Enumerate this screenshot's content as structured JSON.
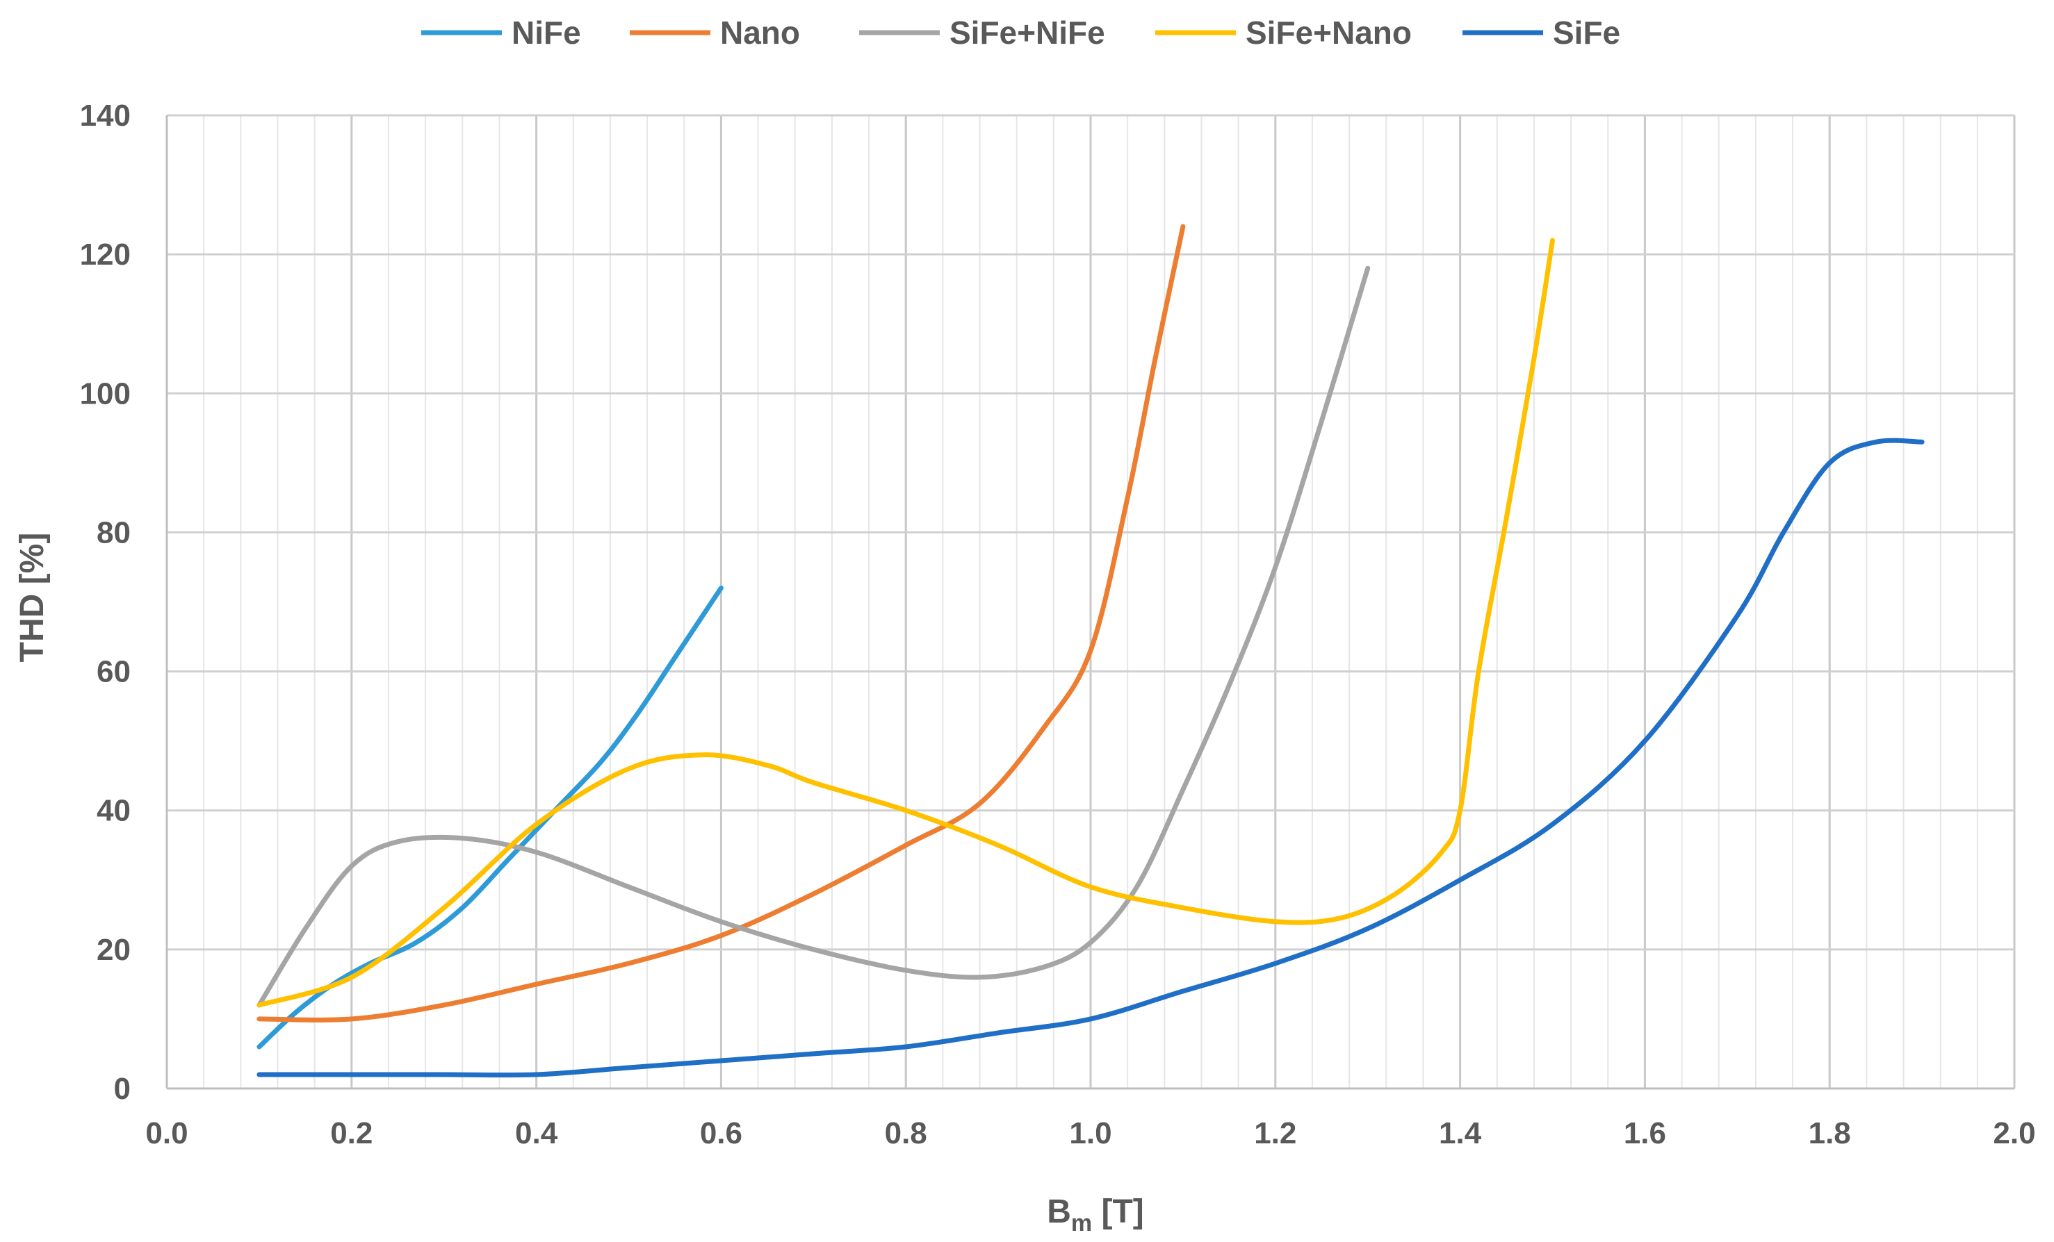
{
  "chart_data": {
    "type": "line",
    "xlabel": {
      "main": "B",
      "sub": "m",
      "unit": " [T]"
    },
    "ylabel": "THD [%]",
    "xlim": [
      0.0,
      2.0
    ],
    "ylim": [
      0,
      140
    ],
    "x_major_step": 0.2,
    "x_minor_step": 0.04,
    "y_major_step": 20,
    "x_ticks": [
      "0.0",
      "0.2",
      "0.4",
      "0.6",
      "0.8",
      "1.0",
      "1.2",
      "1.4",
      "1.6",
      "1.8",
      "2.0"
    ],
    "y_ticks": [
      "0",
      "20",
      "40",
      "60",
      "80",
      "100",
      "120",
      "140"
    ],
    "grid": true,
    "legend_position": "top",
    "series": [
      {
        "name": "NiFe",
        "color": "#2E9BD6",
        "points": [
          [
            0.1,
            6
          ],
          [
            0.14,
            11
          ],
          [
            0.18,
            15
          ],
          [
            0.22,
            18
          ],
          [
            0.27,
            21
          ],
          [
            0.32,
            26
          ],
          [
            0.37,
            33
          ],
          [
            0.42,
            40
          ],
          [
            0.47,
            47
          ],
          [
            0.51,
            54
          ],
          [
            0.55,
            62
          ],
          [
            0.6,
            72
          ]
        ]
      },
      {
        "name": "Nano",
        "color": "#ED7D31",
        "points": [
          [
            0.1,
            10
          ],
          [
            0.2,
            10
          ],
          [
            0.3,
            12
          ],
          [
            0.4,
            15
          ],
          [
            0.5,
            18
          ],
          [
            0.6,
            22
          ],
          [
            0.7,
            28
          ],
          [
            0.8,
            35
          ],
          [
            0.88,
            41
          ],
          [
            0.95,
            52
          ],
          [
            1.0,
            63
          ],
          [
            1.04,
            85
          ],
          [
            1.07,
            105
          ],
          [
            1.1,
            124
          ]
        ]
      },
      {
        "name": "SiFe+NiFe",
        "color": "#A5A5A5",
        "points": [
          [
            0.1,
            12
          ],
          [
            0.15,
            23
          ],
          [
            0.2,
            32
          ],
          [
            0.25,
            35.5
          ],
          [
            0.32,
            36
          ],
          [
            0.4,
            34
          ],
          [
            0.5,
            29
          ],
          [
            0.6,
            24
          ],
          [
            0.7,
            20
          ],
          [
            0.8,
            17
          ],
          [
            0.88,
            16
          ],
          [
            0.95,
            17.5
          ],
          [
            1.0,
            21
          ],
          [
            1.05,
            29
          ],
          [
            1.1,
            43
          ],
          [
            1.15,
            58
          ],
          [
            1.2,
            75
          ],
          [
            1.25,
            96
          ],
          [
            1.3,
            118
          ]
        ]
      },
      {
        "name": "SiFe+Nano",
        "color": "#FFC000",
        "points": [
          [
            0.1,
            12
          ],
          [
            0.2,
            16
          ],
          [
            0.3,
            26
          ],
          [
            0.4,
            38
          ],
          [
            0.5,
            46
          ],
          [
            0.58,
            48
          ],
          [
            0.65,
            46.5
          ],
          [
            0.7,
            44
          ],
          [
            0.8,
            40
          ],
          [
            0.9,
            35
          ],
          [
            1.0,
            29
          ],
          [
            1.1,
            26
          ],
          [
            1.2,
            24
          ],
          [
            1.27,
            24.5
          ],
          [
            1.33,
            28
          ],
          [
            1.38,
            34
          ],
          [
            1.4,
            40
          ],
          [
            1.42,
            60
          ],
          [
            1.45,
            82
          ],
          [
            1.48,
            105
          ],
          [
            1.5,
            122
          ]
        ]
      },
      {
        "name": "SiFe",
        "color": "#1F6FC7",
        "points": [
          [
            0.1,
            2
          ],
          [
            0.2,
            2
          ],
          [
            0.3,
            2
          ],
          [
            0.4,
            2
          ],
          [
            0.5,
            3
          ],
          [
            0.6,
            4
          ],
          [
            0.7,
            5
          ],
          [
            0.8,
            6
          ],
          [
            0.9,
            8
          ],
          [
            1.0,
            10
          ],
          [
            1.1,
            14
          ],
          [
            1.2,
            18
          ],
          [
            1.3,
            23
          ],
          [
            1.4,
            30
          ],
          [
            1.5,
            38
          ],
          [
            1.6,
            50
          ],
          [
            1.7,
            68
          ],
          [
            1.75,
            80
          ],
          [
            1.8,
            90
          ],
          [
            1.85,
            93
          ],
          [
            1.9,
            93
          ]
        ]
      }
    ]
  }
}
